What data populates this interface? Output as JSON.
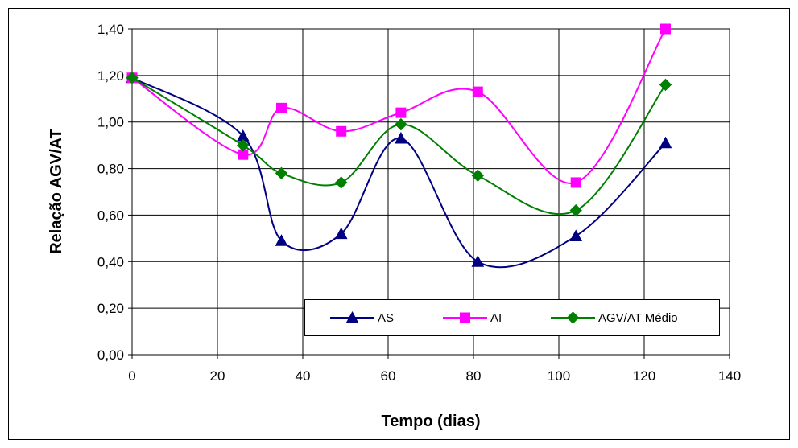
{
  "chart_data": {
    "type": "line",
    "title": "",
    "xlabel": "Tempo (dias)",
    "ylabel": "Relação AGV/AT",
    "xlim": [
      0,
      140
    ],
    "ylim": [
      0,
      1.4
    ],
    "x_ticks": [
      "0",
      "20",
      "40",
      "60",
      "80",
      "100",
      "120",
      "140"
    ],
    "y_ticks": [
      "0,00",
      "0,20",
      "0,40",
      "0,60",
      "0,80",
      "1,00",
      "1,20",
      "1,40"
    ],
    "grid": true,
    "smooth": true,
    "legend_position": "bottom-right",
    "x": [
      0,
      26,
      35,
      49,
      63,
      81,
      104,
      125
    ],
    "series": [
      {
        "name": "AS",
        "color": "#000080",
        "marker": "triangle",
        "values": [
          1.19,
          0.94,
          0.49,
          0.52,
          0.93,
          0.4,
          0.51,
          0.91
        ]
      },
      {
        "name": "AI",
        "color": "#ff00ff",
        "marker": "square",
        "values": [
          1.19,
          0.86,
          1.06,
          0.96,
          1.04,
          1.13,
          0.74,
          1.4
        ]
      },
      {
        "name": "AGV/AT Médio",
        "color": "#008000",
        "marker": "diamond",
        "values": [
          1.19,
          0.9,
          0.78,
          0.74,
          0.99,
          0.77,
          0.62,
          1.16
        ]
      }
    ]
  }
}
